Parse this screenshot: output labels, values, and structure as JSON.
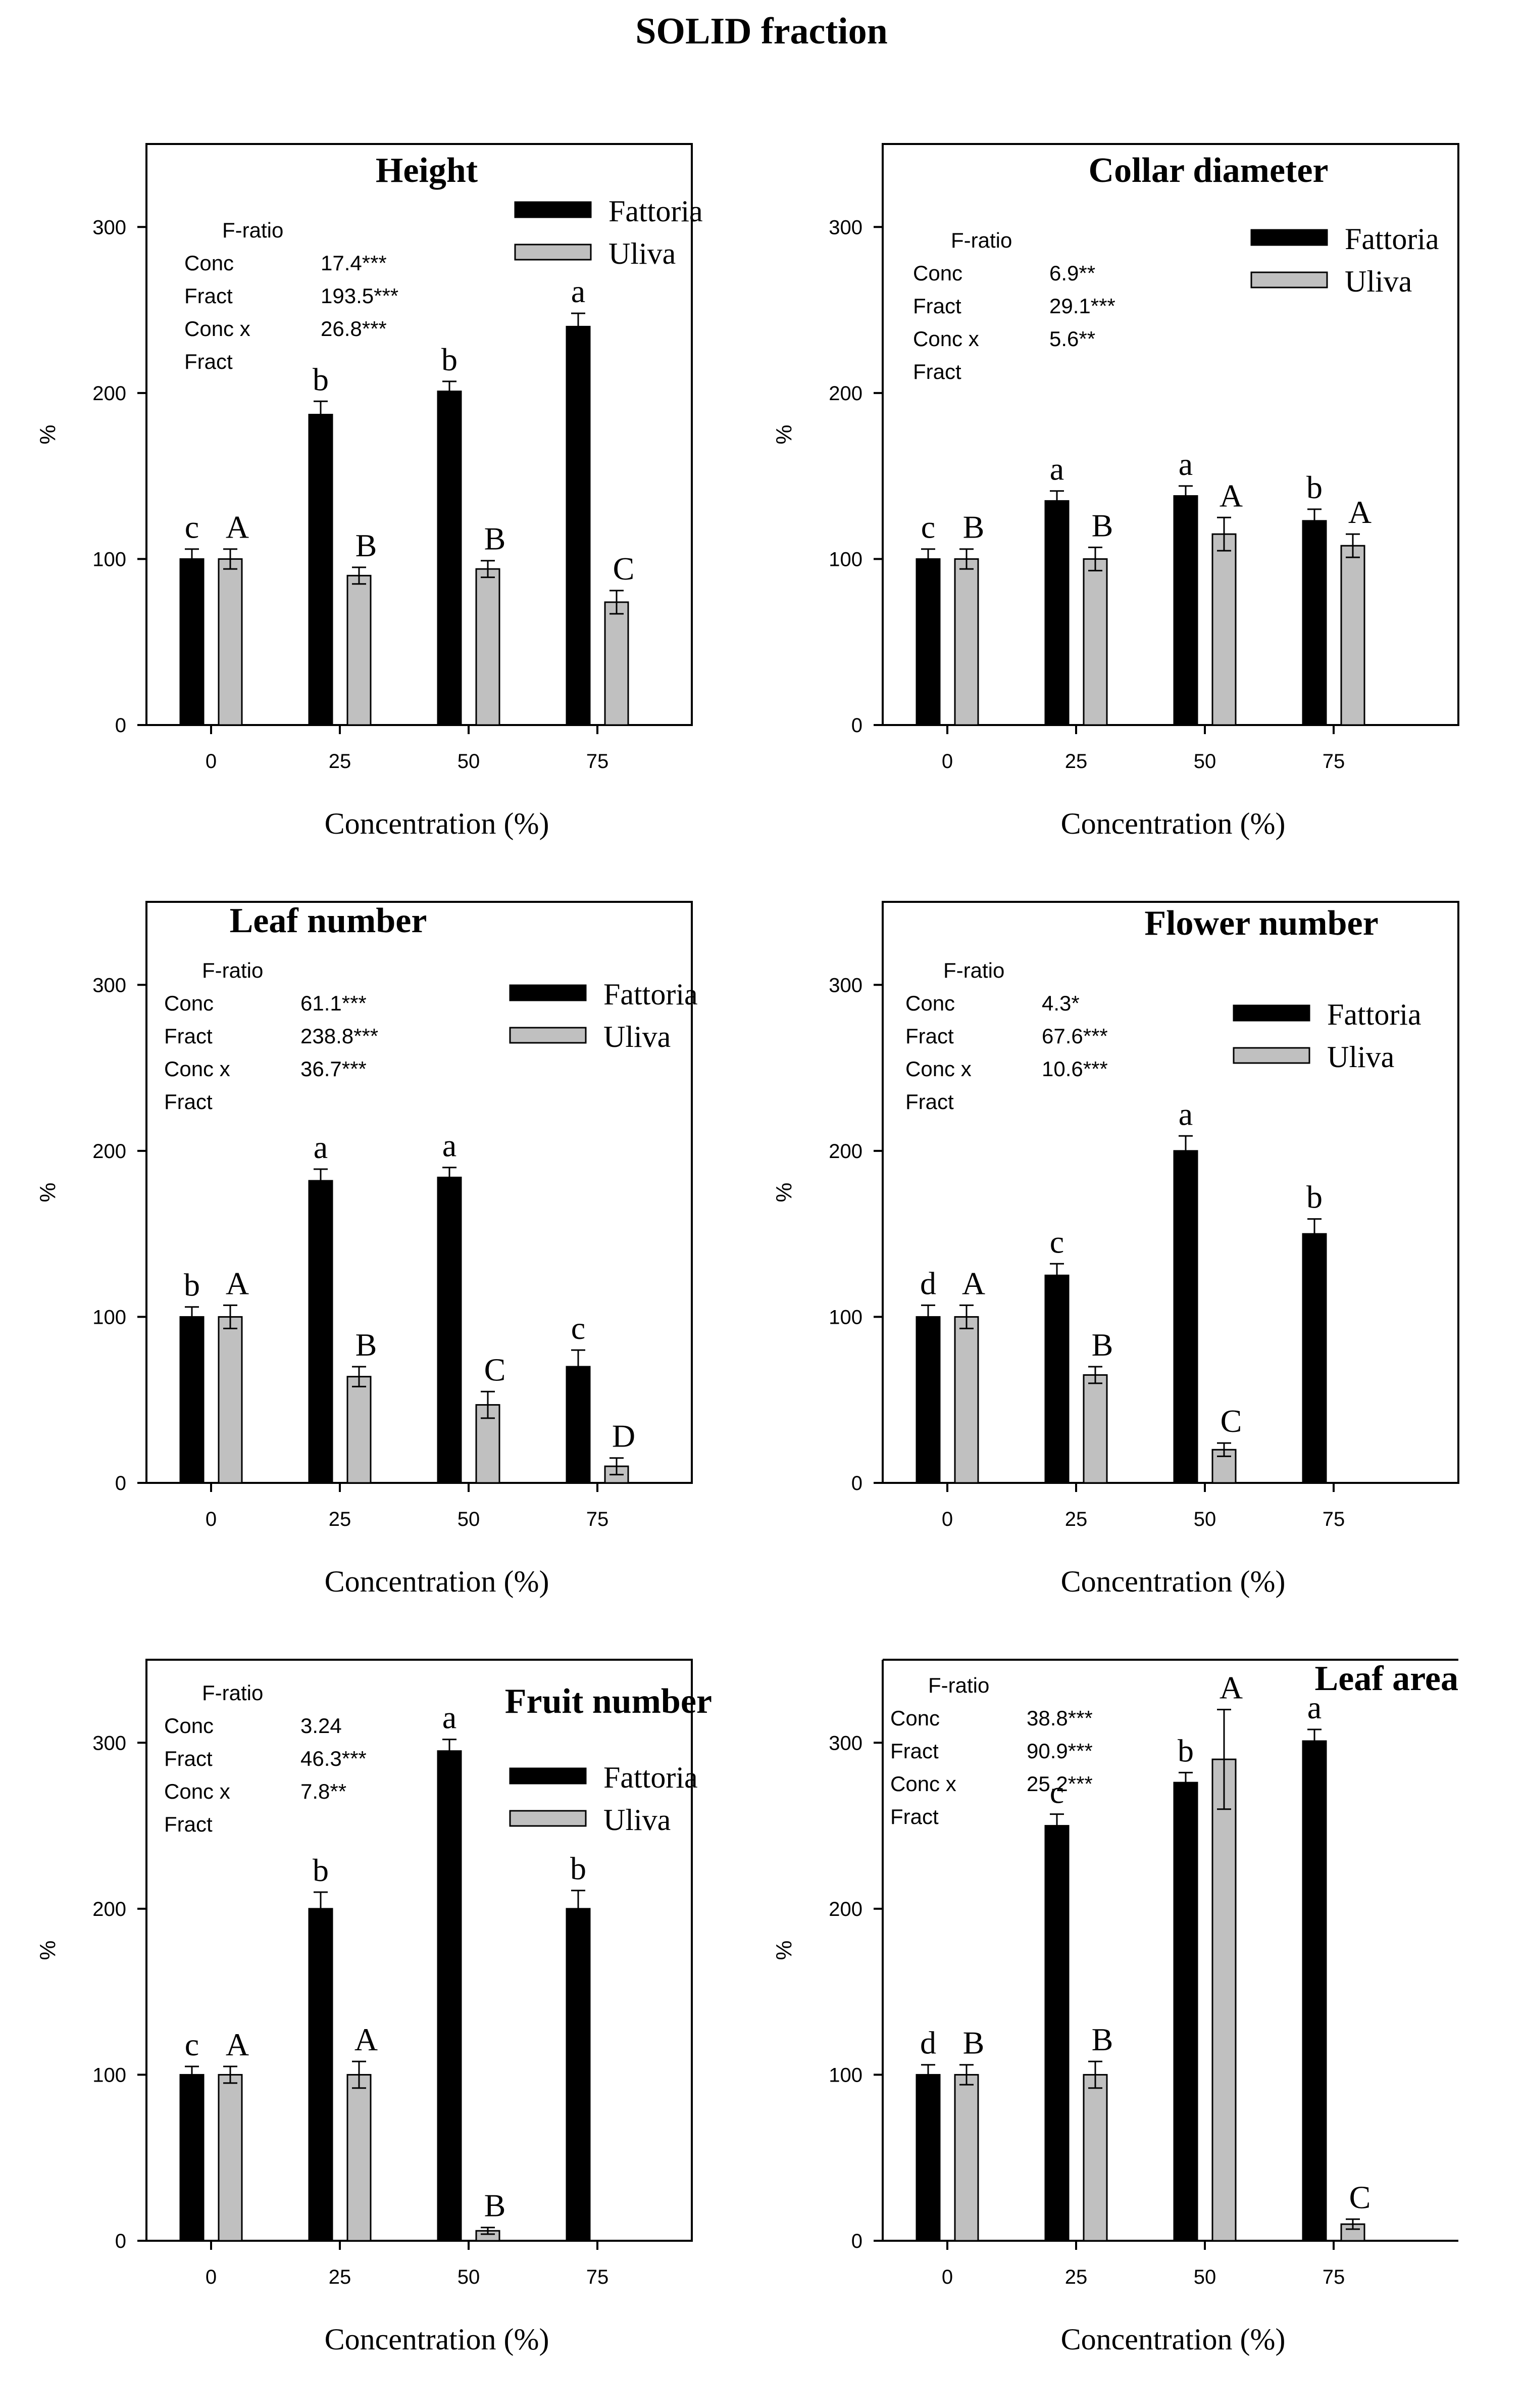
{
  "page": {
    "title": "SOLID fraction"
  },
  "colors": {
    "fattoria": "#000000",
    "uliva": "#c0c0c0",
    "axis": "#000000"
  },
  "chart_data": [
    {
      "type": "bar",
      "title": "Height",
      "xlabel": "Concentration (%)",
      "ylabel": "%",
      "categories": [
        "0",
        "25",
        "50",
        "75"
      ],
      "yticks": [
        "0",
        "100",
        "200",
        "300"
      ],
      "ylim": [
        0,
        350
      ],
      "series": [
        {
          "name": "Fattoria",
          "values": [
            100,
            187,
            201,
            240
          ],
          "errors": [
            6,
            8,
            6,
            8
          ],
          "letters": [
            "c",
            "b",
            "b",
            "a"
          ]
        },
        {
          "name": "Uliva",
          "values": [
            100,
            90,
            94,
            74
          ],
          "errors": [
            6,
            5,
            5,
            7
          ],
          "letters": [
            "A",
            "B",
            "B",
            "C"
          ]
        }
      ],
      "stats": {
        "header": "F-ratio",
        "rows": [
          {
            "label": "Conc",
            "value": "17.4***"
          },
          {
            "label": "Fract",
            "value": "193.5***"
          },
          {
            "label": "Conc x",
            "value": "26.8***"
          },
          {
            "label": "Fract",
            "value": ""
          }
        ]
      }
    },
    {
      "type": "bar",
      "title": "Collar diameter",
      "xlabel": "Concentration (%)",
      "ylabel": "%",
      "categories": [
        "0",
        "25",
        "50",
        "75"
      ],
      "yticks": [
        "0",
        "100",
        "200",
        "300"
      ],
      "ylim": [
        0,
        350
      ],
      "series": [
        {
          "name": "Fattoria",
          "values": [
            100,
            135,
            138,
            123
          ],
          "errors": [
            6,
            6,
            6,
            7
          ],
          "letters": [
            "c",
            "a",
            "a",
            "b"
          ]
        },
        {
          "name": "Uliva",
          "values": [
            100,
            100,
            115,
            108
          ],
          "errors": [
            6,
            7,
            10,
            7
          ],
          "letters": [
            "B",
            "B",
            "A",
            "A"
          ]
        }
      ],
      "stats": {
        "header": "F-ratio",
        "rows": [
          {
            "label": "Conc",
            "value": "6.9**"
          },
          {
            "label": "Fract",
            "value": "29.1***"
          },
          {
            "label": "Conc x",
            "value": "5.6**"
          },
          {
            "label": "Fract",
            "value": ""
          }
        ]
      }
    },
    {
      "type": "bar",
      "title": "Leaf number",
      "xlabel": "Concentration (%)",
      "ylabel": "%",
      "categories": [
        "0",
        "25",
        "50",
        "75"
      ],
      "yticks": [
        "0",
        "100",
        "200",
        "300"
      ],
      "ylim": [
        0,
        350
      ],
      "series": [
        {
          "name": "Fattoria",
          "values": [
            100,
            182,
            184,
            70
          ],
          "errors": [
            6,
            7,
            6,
            10
          ],
          "letters": [
            "b",
            "a",
            "a",
            "c"
          ]
        },
        {
          "name": "Uliva",
          "values": [
            100,
            64,
            47,
            10
          ],
          "errors": [
            7,
            6,
            8,
            5
          ],
          "letters": [
            "A",
            "B",
            "C",
            "D"
          ]
        }
      ],
      "stats": {
        "header": "F-ratio",
        "rows": [
          {
            "label": "Conc",
            "value": "61.1***"
          },
          {
            "label": "Fract",
            "value": "238.8***"
          },
          {
            "label": "Conc x",
            "value": "36.7***"
          },
          {
            "label": "Fract",
            "value": ""
          }
        ]
      }
    },
    {
      "type": "bar",
      "title": "Flower number",
      "xlabel": "Concentration (%)",
      "ylabel": "%",
      "categories": [
        "0",
        "25",
        "50",
        "75"
      ],
      "yticks": [
        "0",
        "100",
        "200",
        "300"
      ],
      "ylim": [
        0,
        350
      ],
      "series": [
        {
          "name": "Fattoria",
          "values": [
            100,
            125,
            200,
            150
          ],
          "errors": [
            7,
            7,
            9,
            9
          ],
          "letters": [
            "d",
            "c",
            "a",
            "b"
          ]
        },
        {
          "name": "Uliva",
          "values": [
            100,
            65,
            20,
            0
          ],
          "errors": [
            7,
            5,
            4,
            0
          ],
          "letters": [
            "A",
            "B",
            "C",
            ""
          ]
        }
      ],
      "stats": {
        "header": "F-ratio",
        "rows": [
          {
            "label": "Conc",
            "value": "4.3*"
          },
          {
            "label": "Fract",
            "value": "67.6***"
          },
          {
            "label": "Conc x",
            "value": "10.6***"
          },
          {
            "label": "Fract",
            "value": ""
          }
        ]
      }
    },
    {
      "type": "bar",
      "title": "Fruit number",
      "xlabel": "Concentration (%)",
      "ylabel": "%",
      "categories": [
        "0",
        "25",
        "50",
        "75"
      ],
      "yticks": [
        "0",
        "100",
        "200",
        "300"
      ],
      "ylim": [
        0,
        350
      ],
      "series": [
        {
          "name": "Fattoria",
          "values": [
            100,
            200,
            295,
            200
          ],
          "errors": [
            5,
            10,
            7,
            11
          ],
          "letters": [
            "c",
            "b",
            "a",
            "b"
          ]
        },
        {
          "name": "Uliva",
          "values": [
            100,
            100,
            6,
            0
          ],
          "errors": [
            5,
            8,
            2,
            0
          ],
          "letters": [
            "A",
            "A",
            "B",
            ""
          ]
        }
      ],
      "stats": {
        "header": "F-ratio",
        "rows": [
          {
            "label": "Conc",
            "value": "3.24"
          },
          {
            "label": "Fract",
            "value": "46.3***"
          },
          {
            "label": "Conc x",
            "value": "7.8**"
          },
          {
            "label": "Fract",
            "value": ""
          }
        ]
      }
    },
    {
      "type": "bar",
      "title": "Leaf area",
      "xlabel": "Concentration (%)",
      "ylabel": "%",
      "categories": [
        "0",
        "25",
        "50",
        "75"
      ],
      "yticks": [
        "0",
        "100",
        "200",
        "300"
      ],
      "ylim": [
        0,
        350
      ],
      "series": [
        {
          "name": "Fattoria",
          "values": [
            100,
            250,
            276,
            301
          ],
          "errors": [
            6,
            7,
            6,
            7
          ],
          "letters": [
            "d",
            "c",
            "b",
            "a"
          ]
        },
        {
          "name": "Uliva",
          "values": [
            100,
            100,
            290,
            10
          ],
          "errors": [
            6,
            8,
            30,
            3
          ],
          "letters": [
            "B",
            "B",
            "A",
            "C"
          ]
        }
      ],
      "stats": {
        "header": "F-ratio",
        "rows": [
          {
            "label": "Conc",
            "value": "38.8***"
          },
          {
            "label": "Fract",
            "value": "90.9***"
          },
          {
            "label": "Conc x",
            "value": "25.2***"
          },
          {
            "label": "Fract",
            "value": ""
          }
        ]
      }
    }
  ]
}
